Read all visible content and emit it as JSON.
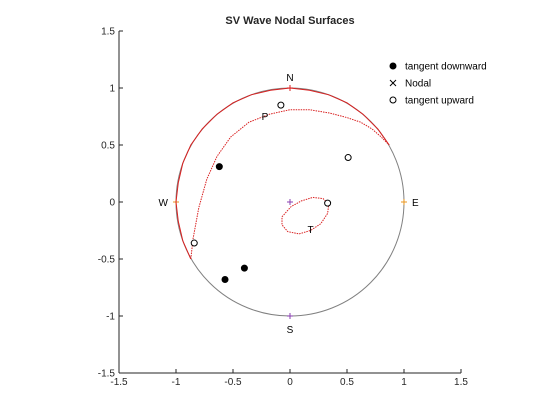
{
  "chart_data": {
    "type": "scatter",
    "title": "SV Wave Nodal Surfaces",
    "xlabel": "",
    "ylabel": "",
    "xlim": [
      -1.5,
      1.5
    ],
    "ylim": [
      -1.5,
      1.5
    ],
    "xticks": [
      -1.5,
      -1,
      -0.5,
      0,
      0.5,
      1,
      1.5
    ],
    "yticks": [
      -1.5,
      -1,
      -0.5,
      0,
      0.5,
      1,
      1.5
    ],
    "xtick_labels": [
      "-1.5",
      "-1",
      "-0.5",
      "0",
      "0.5",
      "1",
      "1.5"
    ],
    "ytick_labels": [
      "-1.5",
      "-1",
      "-0.5",
      "0",
      "0.5",
      "1",
      "1.5"
    ],
    "grid": false,
    "legend_position": "top-right",
    "colors": {
      "circle_gray": "#808080",
      "nodal_red": "#d92020",
      "tick_orange": "#e8961e",
      "tick_purple": "#8a3fb0"
    },
    "directions": [
      {
        "label": "N",
        "x": 0,
        "y": 1,
        "tick_color": "#d92020"
      },
      {
        "label": "S",
        "x": 0,
        "y": -1,
        "tick_color": "#8a3fb0"
      },
      {
        "label": "E",
        "x": 1,
        "y": 0,
        "tick_color": "#e8961e"
      },
      {
        "label": "W",
        "x": -1,
        "y": 0,
        "tick_color": "#e8961e"
      }
    ],
    "center_mark": {
      "x": 0,
      "y": 0,
      "color": "#8a3fb0"
    },
    "axis_labels_points": [
      {
        "label": "P",
        "x": -0.22,
        "y": 0.75
      },
      {
        "label": "T",
        "x": 0.18,
        "y": -0.24
      }
    ],
    "series": [
      {
        "name": "tangent downward",
        "marker": "filled-circle",
        "points": [
          [
            -0.62,
            0.31
          ],
          [
            -0.4,
            -0.58
          ],
          [
            -0.57,
            -0.68
          ]
        ]
      },
      {
        "name": "Nodal",
        "marker": "x",
        "points": []
      },
      {
        "name": "tangent upward",
        "marker": "open-circle",
        "points": [
          [
            -0.08,
            0.85
          ],
          [
            0.51,
            0.39
          ],
          [
            0.33,
            -0.01
          ],
          [
            -0.84,
            -0.36
          ]
        ]
      }
    ],
    "nodal_curves": [
      {
        "name": "outer arc",
        "style": "solid",
        "points": [
          [
            0.87,
            0.5
          ],
          [
            0.77,
            0.64
          ],
          [
            0.64,
            0.77
          ],
          [
            0.5,
            0.87
          ],
          [
            0.34,
            0.94
          ],
          [
            0.17,
            0.98
          ],
          [
            0,
            1
          ],
          [
            -0.17,
            0.98
          ],
          [
            -0.34,
            0.94
          ],
          [
            -0.5,
            0.87
          ],
          [
            -0.64,
            0.77
          ],
          [
            -0.77,
            0.64
          ],
          [
            -0.87,
            0.5
          ],
          [
            -0.94,
            0.34
          ],
          [
            -0.98,
            0.17
          ],
          [
            -1,
            0
          ],
          [
            -0.98,
            -0.17
          ],
          [
            -0.94,
            -0.34
          ],
          [
            -0.87,
            -0.5
          ]
        ]
      },
      {
        "name": "inner arc",
        "style": "dashed",
        "points": [
          [
            -0.87,
            -0.5
          ],
          [
            -0.85,
            -0.32
          ],
          [
            -0.8,
            -0.05
          ],
          [
            -0.73,
            0.2
          ],
          [
            -0.64,
            0.4
          ],
          [
            -0.52,
            0.57
          ],
          [
            -0.36,
            0.7
          ],
          [
            -0.18,
            0.77
          ],
          [
            0,
            0.81
          ],
          [
            0.17,
            0.81
          ],
          [
            0.35,
            0.78
          ],
          [
            0.5,
            0.74
          ],
          [
            0.62,
            0.7
          ],
          [
            0.72,
            0.64
          ],
          [
            0.8,
            0.57
          ],
          [
            0.87,
            0.5
          ]
        ]
      },
      {
        "name": "T loop",
        "style": "dashed",
        "points": [
          [
            -0.07,
            -0.13
          ],
          [
            0.01,
            -0.04
          ],
          [
            0.1,
            0.01
          ],
          [
            0.2,
            0.04
          ],
          [
            0.29,
            0.03
          ],
          [
            0.34,
            -0.02
          ],
          [
            0.33,
            -0.1
          ],
          [
            0.27,
            -0.19
          ],
          [
            0.18,
            -0.25
          ],
          [
            0.08,
            -0.28
          ],
          [
            -0.02,
            -0.26
          ],
          [
            -0.07,
            -0.2
          ],
          [
            -0.07,
            -0.13
          ]
        ]
      }
    ]
  }
}
